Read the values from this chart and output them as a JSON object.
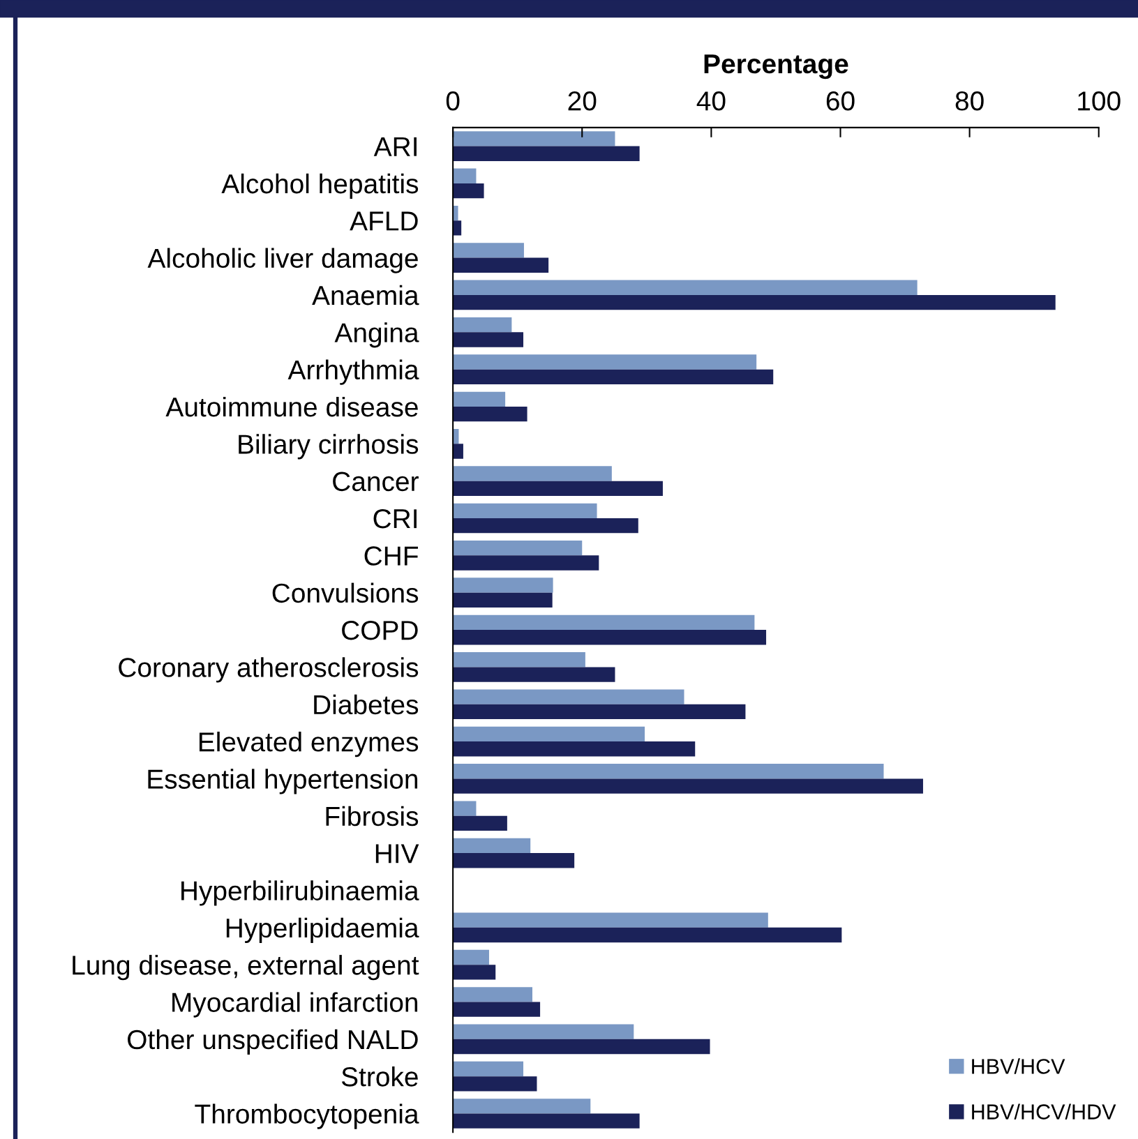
{
  "chart_data": {
    "type": "bar",
    "orientation": "horizontal",
    "xlabel": "Percentage",
    "categories": [
      "ARI",
      "Alcohol hepatitis",
      "AFLD",
      "Alcoholic liver damage",
      "Anaemia",
      "Angina",
      "Arrhythmia",
      "Autoimmune disease",
      "Biliary cirrhosis",
      "Cancer",
      "CRI",
      "CHF",
      "Convulsions",
      "COPD",
      "Coronary atherosclerosis",
      "Diabetes",
      "Elevated enzymes",
      "Essential hypertension",
      "Fibrosis",
      "HIV",
      "Hyperbilirubinaemia",
      "Hyperlipidaemia",
      "Lung disease, external agent",
      "Myocardial infarction",
      "Other unspecified NALD",
      "Stroke",
      "Thrombocytopenia"
    ],
    "series": [
      {
        "name": "HBV/HCV",
        "color": "#7a98c4",
        "values": [
          25.1,
          3.6,
          0.8,
          11.0,
          71.9,
          9.1,
          47.0,
          8.1,
          0.9,
          24.6,
          22.3,
          20.0,
          15.5,
          46.7,
          20.5,
          35.8,
          29.7,
          66.7,
          3.6,
          12.0,
          0,
          48.8,
          5.6,
          12.3,
          28.0,
          10.9,
          21.3
        ]
      },
      {
        "name": "HBV/HCV/HDV",
        "color": "#1b2259",
        "values": [
          28.9,
          4.8,
          1.3,
          14.8,
          93.3,
          10.9,
          49.6,
          11.5,
          1.6,
          32.5,
          28.7,
          22.6,
          15.4,
          48.5,
          25.1,
          45.3,
          37.5,
          72.8,
          8.4,
          18.8,
          0,
          60.2,
          6.6,
          13.5,
          39.8,
          13.0,
          28.9
        ]
      }
    ],
    "xlim": [
      0,
      100
    ],
    "xticks": [
      0,
      20,
      40,
      60,
      80,
      100
    ],
    "grid": false,
    "legend": "bottom right"
  }
}
